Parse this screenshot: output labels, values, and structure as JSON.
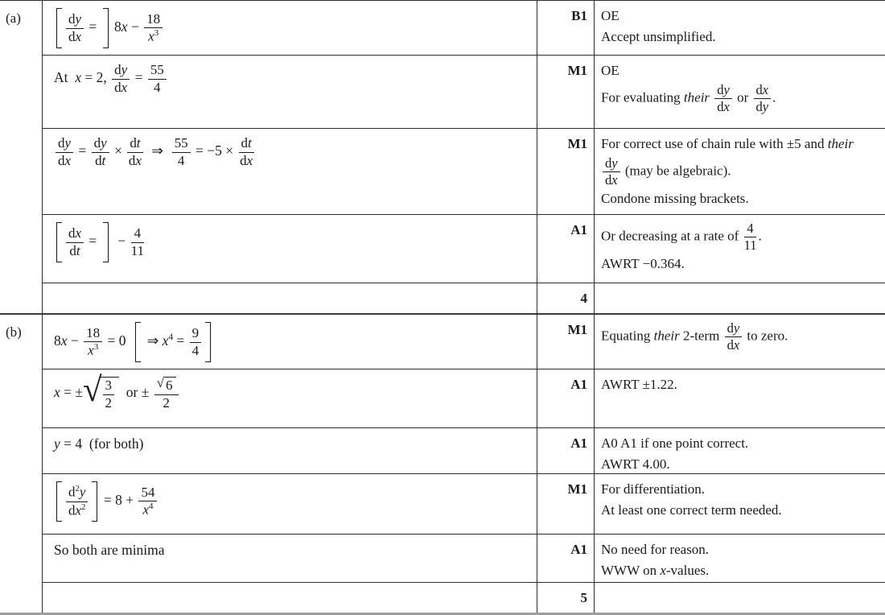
{
  "document_title": "Mark scheme table",
  "colors": {
    "background": "#ffffff",
    "border": "#2e2e2e",
    "text": "#1a1a1a"
  },
  "parts": [
    {
      "label": "(a)",
      "total": "4",
      "rows": [
        {
          "mark": "B1",
          "math": [
            {
              "bl": 1
            },
            {
              "f": {
                "n": [
                  {
                    "r": "d"
                  },
                  {
                    "i": "y"
                  }
                ],
                "d": [
                  {
                    "r": "d"
                  },
                  {
                    "i": "x"
                  }
                ]
              }
            },
            {
              "r": " = "
            },
            {
              "br": 1
            },
            {
              "r": " 8"
            },
            {
              "i": "x"
            },
            {
              "r": " − "
            },
            {
              "f": {
                "n": [
                  {
                    "r": "18"
                  }
                ],
                "d": [
                  {
                    "i": "x"
                  },
                  {
                    "sup": "3"
                  }
                ]
              }
            }
          ],
          "comment": [
            [
              {
                "r": "OE"
              }
            ],
            [
              {
                "r": "Accept unsimplified."
              }
            ]
          ]
        },
        {
          "mark": "M1",
          "math": [
            {
              "r": "At  "
            },
            {
              "i": "x"
            },
            {
              "r": " = 2, "
            },
            {
              "f": {
                "n": [
                  {
                    "r": "d"
                  },
                  {
                    "i": "y"
                  }
                ],
                "d": [
                  {
                    "r": "d"
                  },
                  {
                    "i": "x"
                  }
                ]
              }
            },
            {
              "r": " = "
            },
            {
              "f": {
                "n": [
                  {
                    "r": "55"
                  }
                ],
                "d": [
                  {
                    "r": "4"
                  }
                ]
              }
            }
          ],
          "comment": [
            [
              {
                "r": "OE"
              }
            ],
            [
              {
                "r": "For evaluating "
              },
              {
                "i": "their"
              },
              {
                "r": " "
              },
              {
                "f": {
                  "n": [
                    {
                      "r": "d"
                    },
                    {
                      "i": "y"
                    }
                  ],
                  "d": [
                    {
                      "r": "d"
                    },
                    {
                      "i": "x"
                    }
                  ]
                }
              },
              {
                "r": " or "
              },
              {
                "f": {
                  "n": [
                    {
                      "r": "d"
                    },
                    {
                      "i": "x"
                    }
                  ],
                  "d": [
                    {
                      "r": "d"
                    },
                    {
                      "i": "y"
                    }
                  ]
                }
              },
              {
                "r": "."
              }
            ]
          ]
        },
        {
          "mark": "M1",
          "math": [
            {
              "f": {
                "n": [
                  {
                    "r": "d"
                  },
                  {
                    "i": "y"
                  }
                ],
                "d": [
                  {
                    "r": "d"
                  },
                  {
                    "i": "x"
                  }
                ]
              }
            },
            {
              "r": " = "
            },
            {
              "f": {
                "n": [
                  {
                    "r": "d"
                  },
                  {
                    "i": "y"
                  }
                ],
                "d": [
                  {
                    "r": "d"
                  },
                  {
                    "i": "t"
                  }
                ]
              }
            },
            {
              "r": " × "
            },
            {
              "f": {
                "n": [
                  {
                    "r": "d"
                  },
                  {
                    "i": "t"
                  }
                ],
                "d": [
                  {
                    "r": "d"
                  },
                  {
                    "i": "x"
                  }
                ]
              }
            },
            {
              "r": "  ⇒  "
            },
            {
              "f": {
                "n": [
                  {
                    "r": "55"
                  }
                ],
                "d": [
                  {
                    "r": "4"
                  }
                ]
              }
            },
            {
              "r": " = −5 × "
            },
            {
              "f": {
                "n": [
                  {
                    "r": "d"
                  },
                  {
                    "i": "t"
                  }
                ],
                "d": [
                  {
                    "r": "d"
                  },
                  {
                    "i": "x"
                  }
                ]
              }
            }
          ],
          "comment": [
            [
              {
                "r": "For correct use of chain rule with ±5 and "
              },
              {
                "i": "their"
              }
            ],
            [
              {
                "f": {
                  "n": [
                    {
                      "r": "d"
                    },
                    {
                      "i": "y"
                    }
                  ],
                  "d": [
                    {
                      "r": "d"
                    },
                    {
                      "i": "x"
                    }
                  ]
                }
              },
              {
                "r": " (may be algebraic)."
              }
            ],
            [
              {
                "r": "Condone missing brackets."
              }
            ]
          ]
        },
        {
          "mark": "A1",
          "math": [
            {
              "bl": 1
            },
            {
              "f": {
                "n": [
                  {
                    "r": "d"
                  },
                  {
                    "i": "x"
                  }
                ],
                "d": [
                  {
                    "r": "d"
                  },
                  {
                    "i": "t"
                  }
                ]
              }
            },
            {
              "r": " = "
            },
            {
              "br": 1
            },
            {
              "r": "  − "
            },
            {
              "f": {
                "n": [
                  {
                    "r": "4"
                  }
                ],
                "d": [
                  {
                    "r": "11"
                  }
                ]
              }
            }
          ],
          "comment": [
            [
              {
                "r": "Or decreasing at a rate of "
              },
              {
                "f": {
                  "n": [
                    {
                      "r": "4"
                    }
                  ],
                  "d": [
                    {
                      "r": "11"
                    }
                  ]
                }
              },
              {
                "r": "."
              }
            ],
            [
              {
                "r": "AWRT −0.364."
              }
            ]
          ]
        }
      ]
    },
    {
      "label": "(b)",
      "total": "5",
      "rows": [
        {
          "mark": "M1",
          "math": [
            {
              "r": "8"
            },
            {
              "i": "x"
            },
            {
              "r": " − "
            },
            {
              "f": {
                "n": [
                  {
                    "r": "18"
                  }
                ],
                "d": [
                  {
                    "i": "x"
                  },
                  {
                    "sup": "3"
                  }
                ]
              }
            },
            {
              "r": " = 0  "
            },
            {
              "bl": 1
            },
            {
              "r": " ⇒ "
            },
            {
              "i": "x"
            },
            {
              "sup": "4"
            },
            {
              "r": " = "
            },
            {
              "f": {
                "n": [
                  {
                    "r": "9"
                  }
                ],
                "d": [
                  {
                    "r": "4"
                  }
                ]
              }
            },
            {
              "br": 1
            }
          ],
          "comment": [
            [
              {
                "r": "Equating "
              },
              {
                "i": "their"
              },
              {
                "r": " 2-term "
              },
              {
                "f": {
                  "n": [
                    {
                      "r": "d"
                    },
                    {
                      "i": "y"
                    }
                  ],
                  "d": [
                    {
                      "r": "d"
                    },
                    {
                      "i": "x"
                    }
                  ]
                }
              },
              {
                "r": " to zero."
              }
            ]
          ]
        },
        {
          "mark": "A1",
          "math": [
            {
              "i": "x"
            },
            {
              "r": " = ±"
            },
            {
              "s": [
                {
                  "f": {
                    "n": [
                      {
                        "r": "3"
                      }
                    ],
                    "d": [
                      {
                        "r": "2"
                      }
                    ]
                  }
                }
              ],
              "big": 1
            },
            {
              "r": "  or ± "
            },
            {
              "f": {
                "n": [
                  {
                    "s": [
                      {
                        "r": "6"
                      }
                    ]
                  }
                ],
                "d": [
                  {
                    "r": "2"
                  }
                ]
              }
            }
          ],
          "comment": [
            [
              {
                "r": "AWRT ±1.22."
              }
            ]
          ]
        },
        {
          "mark": "A1",
          "math": [
            {
              "i": "y"
            },
            {
              "r": " = 4  (for both)"
            }
          ],
          "comment": [
            [
              {
                "r": "A0 A1 if one point correct."
              }
            ],
            [
              {
                "r": "AWRT 4.00."
              }
            ]
          ]
        },
        {
          "mark": "M1",
          "math": [
            {
              "bl": 1
            },
            {
              "f": {
                "n": [
                  {
                    "r": "d"
                  },
                  {
                    "sup": "2"
                  },
                  {
                    "i": "y"
                  }
                ],
                "d": [
                  {
                    "r": "d"
                  },
                  {
                    "i": "x"
                  },
                  {
                    "sup": "2"
                  }
                ]
              }
            },
            {
              "br": 1
            },
            {
              "r": " = 8 + "
            },
            {
              "f": {
                "n": [
                  {
                    "r": "54"
                  }
                ],
                "d": [
                  {
                    "i": "x"
                  },
                  {
                    "sup": "4"
                  }
                ]
              }
            }
          ],
          "comment": [
            [
              {
                "r": "For differentiation."
              }
            ],
            [
              {
                "r": "At least one correct term needed."
              }
            ]
          ]
        },
        {
          "mark": "A1",
          "math": [
            {
              "r": "So both are minima"
            }
          ],
          "comment": [
            [
              {
                "r": "No need for reason."
              }
            ],
            [
              {
                "r": "WWW on "
              },
              {
                "i": "x"
              },
              {
                "r": "-values."
              }
            ]
          ]
        }
      ]
    }
  ]
}
